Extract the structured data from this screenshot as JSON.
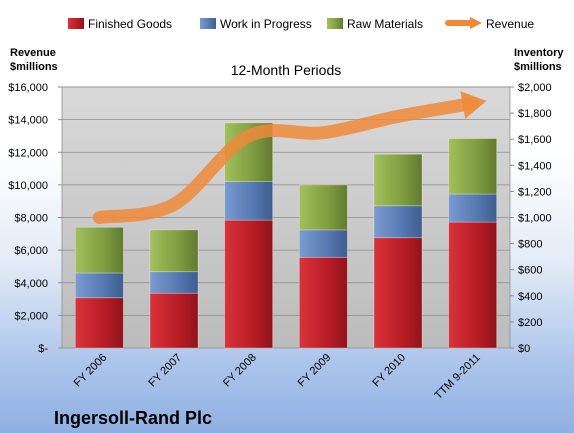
{
  "chart_data": {
    "type": "bar",
    "stacked": true,
    "subtitle": "12-Month Periods",
    "categories": [
      "FY 2006",
      "FY 2007",
      "FY 2008",
      "FY 2009",
      "FY 2010",
      "TTM 9-2011"
    ],
    "left_axis": {
      "title_line1": "Revenue",
      "title_line2": "$millions",
      "range": [
        0,
        16000
      ],
      "ticks": [
        {
          "value": 0,
          "label": "$-"
        },
        {
          "value": 2000,
          "label": "$2,000"
        },
        {
          "value": 4000,
          "label": "$4,000"
        },
        {
          "value": 6000,
          "label": "$6,000"
        },
        {
          "value": 8000,
          "label": "$8,000"
        },
        {
          "value": 10000,
          "label": "$10,000"
        },
        {
          "value": 12000,
          "label": "$12,000"
        },
        {
          "value": 14000,
          "label": "$14,000"
        },
        {
          "value": 16000,
          "label": "$16,000"
        }
      ]
    },
    "right_axis": {
      "title_line1": "Inventory",
      "title_line2": "$millions",
      "range": [
        0,
        2000
      ],
      "ticks": [
        {
          "value": 0,
          "label": "$0"
        },
        {
          "value": 200,
          "label": "$200"
        },
        {
          "value": 400,
          "label": "$400"
        },
        {
          "value": 600,
          "label": "$600"
        },
        {
          "value": 800,
          "label": "$800"
        },
        {
          "value": 1000,
          "label": "$1,000"
        },
        {
          "value": 1200,
          "label": "$1,200"
        },
        {
          "value": 1400,
          "label": "$1,400"
        },
        {
          "value": 1600,
          "label": "$1,600"
        },
        {
          "value": 1800,
          "label": "$1,800"
        },
        {
          "value": 2000,
          "label": "$2,000"
        }
      ]
    },
    "series": [
      {
        "name": "Finished Goods",
        "axis": "right",
        "color": "#c0232c",
        "values": [
          385,
          420,
          980,
          695,
          845,
          965
        ]
      },
      {
        "name": "Work in Progress",
        "axis": "right",
        "color": "#5a7fb8",
        "values": [
          190,
          165,
          295,
          210,
          245,
          215
        ]
      },
      {
        "name": "Raw Materials",
        "axis": "right",
        "color": "#8aa94a",
        "values": [
          350,
          320,
          450,
          345,
          395,
          425
        ]
      },
      {
        "name": "Revenue",
        "axis": "left",
        "type": "line",
        "color": "#ee8a3a",
        "values": [
          8000,
          8800,
          13000,
          13200,
          14200,
          15000
        ]
      }
    ],
    "grid": true,
    "legend_position": "top"
  },
  "company": "Ingersoll-Rand Plc"
}
